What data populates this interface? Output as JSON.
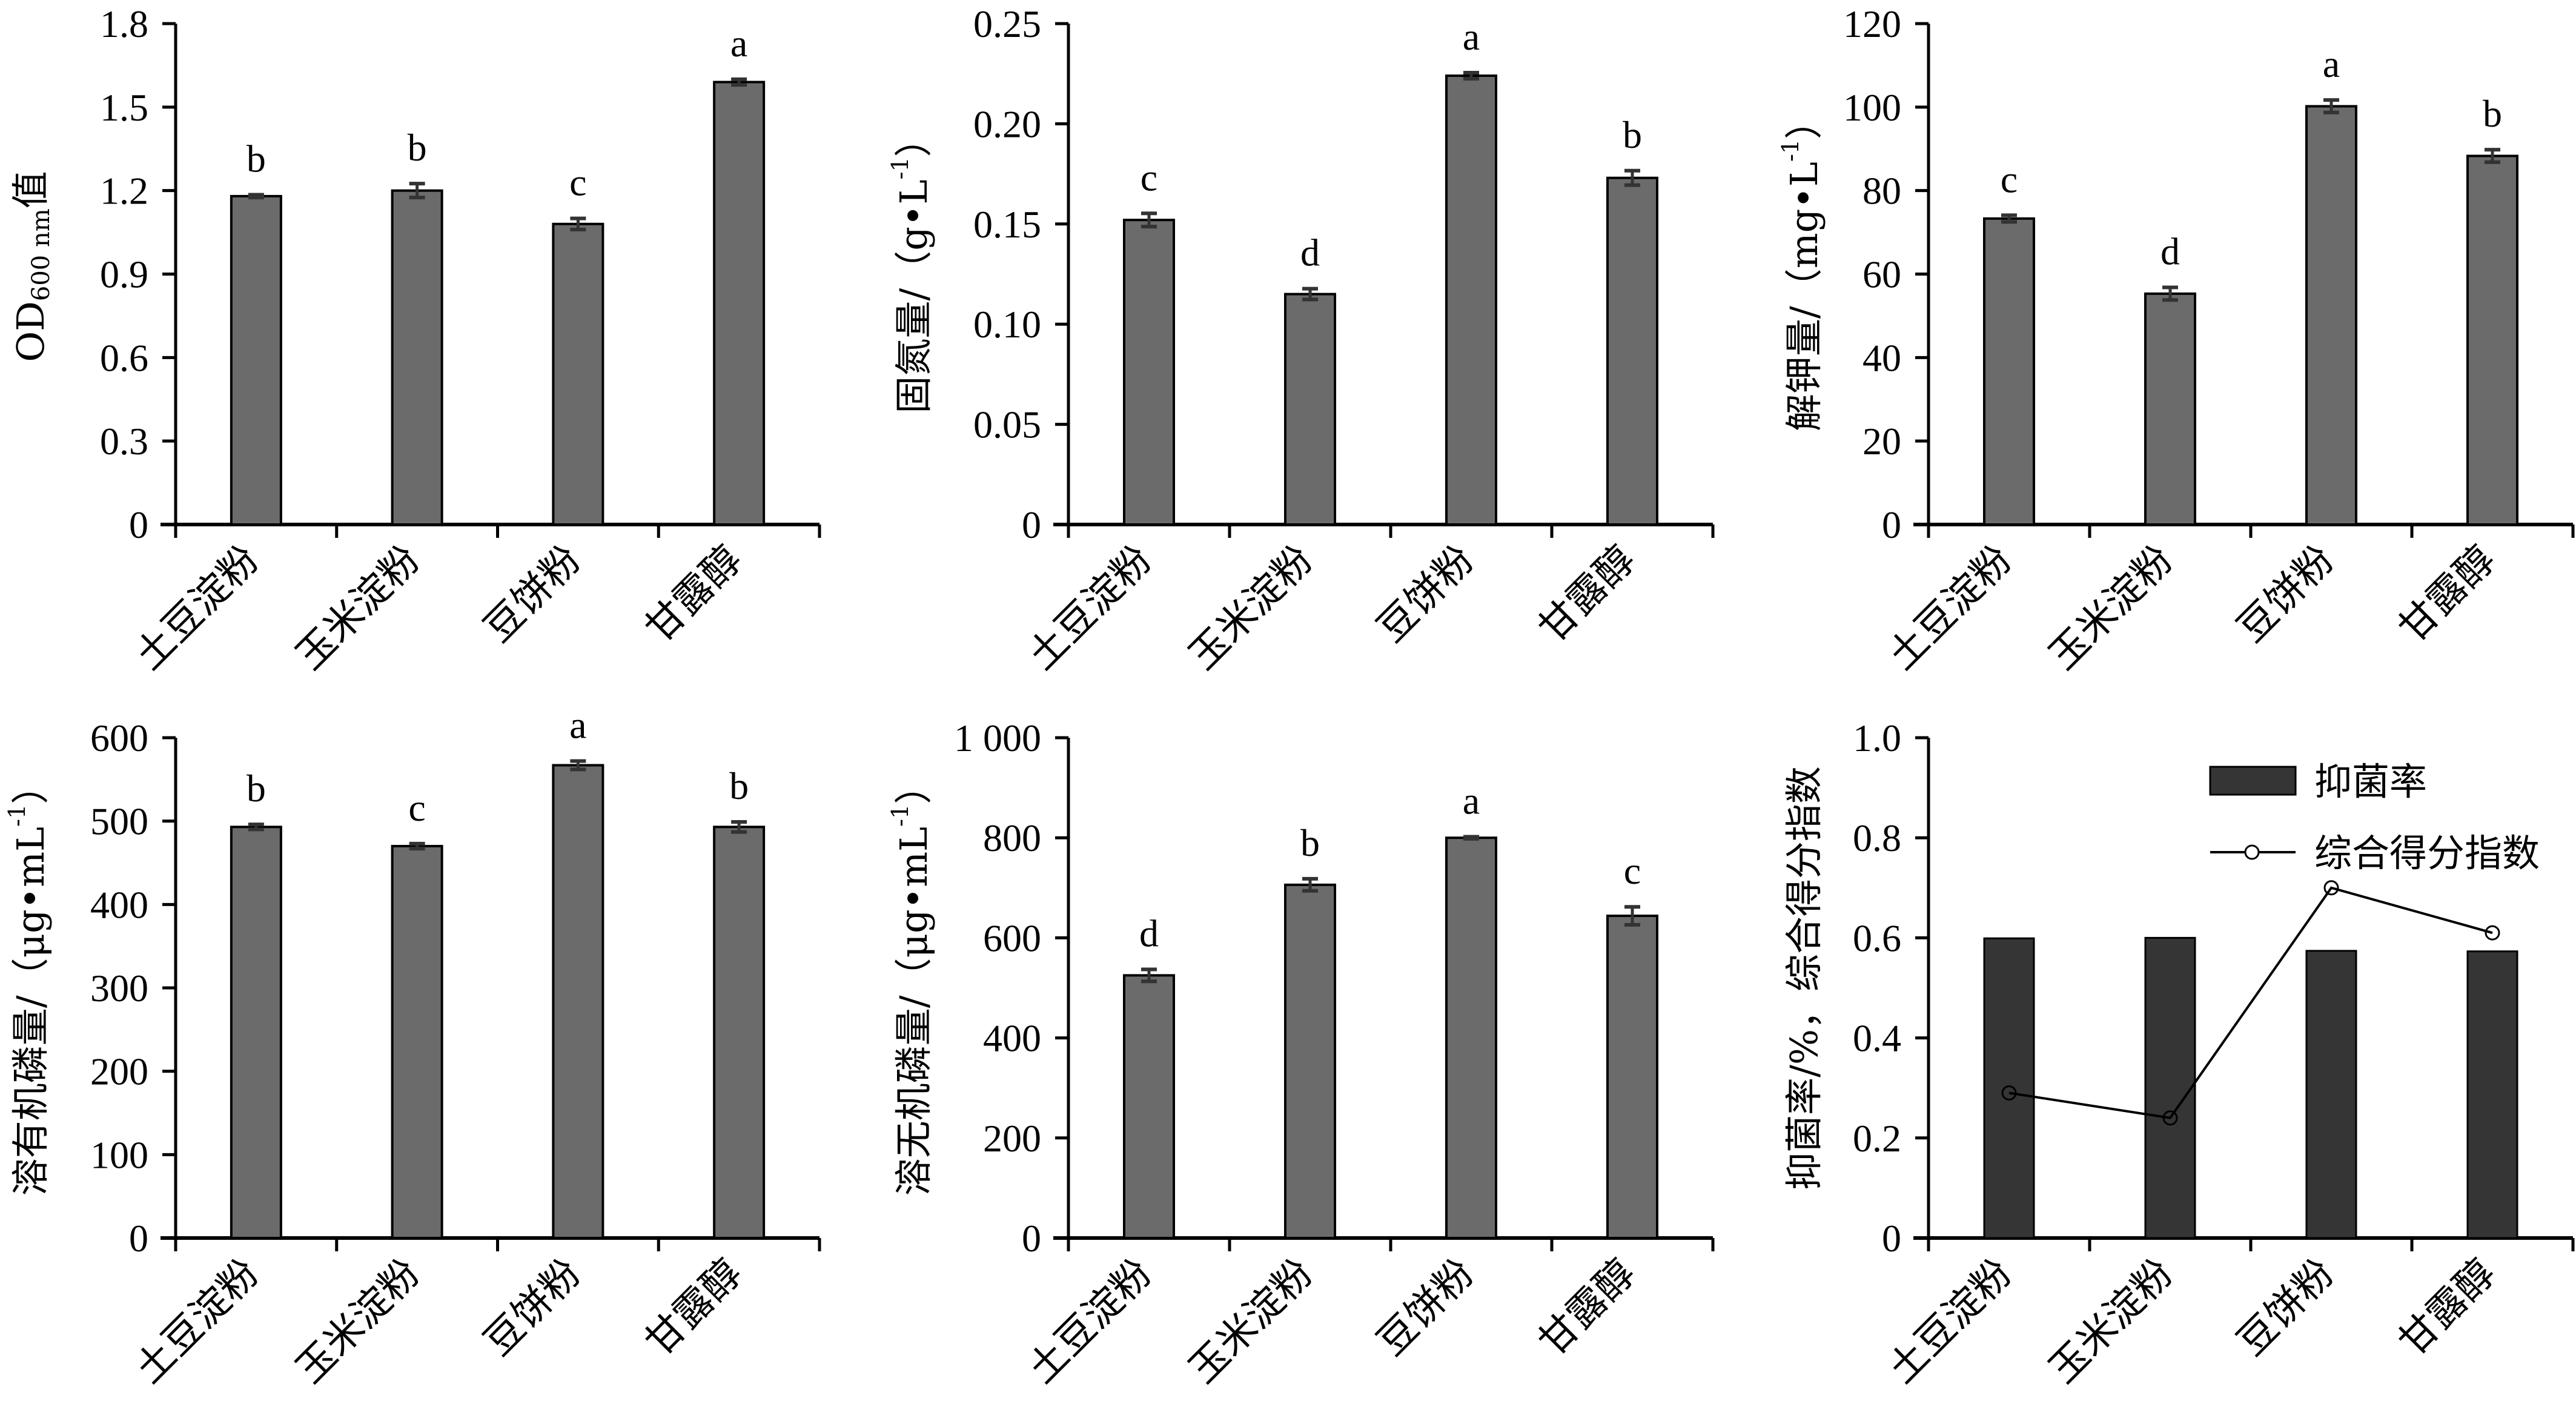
{
  "chart_data": [
    {
      "type": "bar",
      "id": "od600",
      "ylabel": {
        "main": "OD",
        "sub": "600 nm",
        "suffix": "值"
      },
      "categories": [
        "土豆淀粉",
        "玉米淀粉",
        "豆饼粉",
        "甘露醇"
      ],
      "values": [
        1.18,
        1.2,
        1.08,
        1.59
      ],
      "errors": [
        0.005,
        0.025,
        0.02,
        0.01
      ],
      "significance": [
        "b",
        "b",
        "c",
        "a"
      ],
      "ylim": [
        0,
        1.8
      ],
      "yticks": [
        0,
        0.3,
        0.6,
        0.9,
        1.2,
        1.5,
        1.8
      ],
      "ytick_labels": [
        "0",
        "0.3",
        "0.6",
        "0.9",
        "1.2",
        "1.5",
        "1.8"
      ],
      "bar_color": "#6b6b6b"
    },
    {
      "type": "bar",
      "id": "nitrogen",
      "ylabel": {
        "main": "固氮量/（g•L",
        "sup": "-1",
        "suffix": "）"
      },
      "categories": [
        "土豆淀粉",
        "玉米淀粉",
        "豆饼粉",
        "甘露醇"
      ],
      "values": [
        0.152,
        0.115,
        0.224,
        0.173
      ],
      "errors": [
        0.0033,
        0.0027,
        0.0015,
        0.0036
      ],
      "significance": [
        "c",
        "d",
        "a",
        "b"
      ],
      "ylim": [
        0,
        0.25
      ],
      "yticks": [
        0,
        0.05,
        0.1,
        0.15,
        0.2,
        0.25
      ],
      "ytick_labels": [
        "0",
        "0.05",
        "0.10",
        "0.15",
        "0.20",
        "0.25"
      ],
      "bar_color": "#6b6b6b"
    },
    {
      "type": "bar",
      "id": "potassium",
      "ylabel": {
        "main": "解钾量/（mg•L",
        "sup": "-1",
        "suffix": "）"
      },
      "categories": [
        "土豆淀粉",
        "玉米淀粉",
        "豆饼粉",
        "甘露醇"
      ],
      "values": [
        73.3,
        55.3,
        100.2,
        88.3
      ],
      "errors": [
        0.8,
        1.5,
        1.5,
        1.5
      ],
      "significance": [
        "c",
        "d",
        "a",
        "b"
      ],
      "ylim": [
        0,
        120
      ],
      "yticks": [
        0,
        20,
        40,
        60,
        80,
        100,
        120
      ],
      "ytick_labels": [
        "0",
        "20",
        "40",
        "60",
        "80",
        "100",
        "120"
      ],
      "bar_color": "#6b6b6b"
    },
    {
      "type": "bar",
      "id": "organic-p",
      "ylabel": {
        "main": "溶有机磷量/（μg•mL",
        "sup": "-1",
        "suffix": "）"
      },
      "categories": [
        "土豆淀粉",
        "玉米淀粉",
        "豆饼粉",
        "甘露醇"
      ],
      "values": [
        493,
        470,
        567,
        493
      ],
      "errors": [
        3,
        3,
        5,
        6
      ],
      "significance": [
        "b",
        "c",
        "a",
        "b"
      ],
      "ylim": [
        0,
        600
      ],
      "yticks": [
        0,
        100,
        200,
        300,
        400,
        500,
        600
      ],
      "ytick_labels": [
        "0",
        "100",
        "200",
        "300",
        "400",
        "500",
        "600"
      ],
      "bar_color": "#6b6b6b"
    },
    {
      "type": "bar",
      "id": "inorganic-p",
      "ylabel": {
        "main": "溶无机磷量/（μg•mL",
        "sup": "-1",
        "suffix": "）"
      },
      "categories": [
        "土豆淀粉",
        "玉米淀粉",
        "豆饼粉",
        "甘露醇"
      ],
      "values": [
        525,
        706,
        800,
        644
      ],
      "errors": [
        12,
        12,
        2,
        18
      ],
      "significance": [
        "d",
        "b",
        "a",
        "c"
      ],
      "ylim": [
        0,
        1000
      ],
      "yticks": [
        0,
        200,
        400,
        600,
        800,
        1000
      ],
      "ytick_labels": [
        "0",
        "200",
        "400",
        "600",
        "800",
        "1 000"
      ],
      "bar_color": "#6b6b6b"
    },
    {
      "type": "bar+line",
      "id": "inhibition",
      "ylabel": {
        "main": "抑菌率/%，综合得分指数"
      },
      "categories": [
        "土豆淀粉",
        "玉米淀粉",
        "豆饼粉",
        "甘露醇"
      ],
      "series": [
        {
          "name": "抑菌率",
          "kind": "bar",
          "values": [
            0.599,
            0.6,
            0.574,
            0.573
          ],
          "color": "#353535"
        },
        {
          "name": "综合得分指数",
          "kind": "line",
          "values": [
            0.29,
            0.24,
            0.7,
            0.61
          ],
          "color": "#000000"
        }
      ],
      "legend_position": "top-right",
      "ylim": [
        0,
        1.0
      ],
      "yticks": [
        0,
        0.2,
        0.4,
        0.6,
        0.8,
        1.0
      ],
      "ytick_labels": [
        "0",
        "0.2",
        "0.4",
        "0.6",
        "0.8",
        "1.0"
      ]
    }
  ]
}
